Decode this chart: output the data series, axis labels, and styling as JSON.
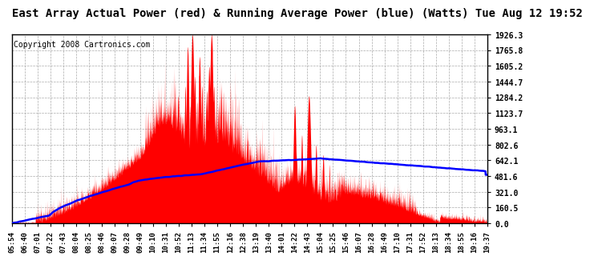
{
  "title": "East Array Actual Power (red) & Running Average Power (blue) (Watts) Tue Aug 12 19:52",
  "copyright": "Copyright 2008 Cartronics.com",
  "ylabel_values": [
    0.0,
    160.5,
    321.0,
    481.6,
    642.1,
    802.6,
    963.1,
    1123.7,
    1284.2,
    1444.7,
    1605.2,
    1765.8,
    1926.3
  ],
  "ymax": 1926.3,
  "ymin": 0.0,
  "xtick_labels": [
    "05:54",
    "06:40",
    "07:01",
    "07:22",
    "07:43",
    "08:04",
    "08:25",
    "08:46",
    "09:07",
    "09:28",
    "09:49",
    "10:10",
    "10:31",
    "10:52",
    "11:13",
    "11:34",
    "11:55",
    "12:16",
    "12:38",
    "13:19",
    "13:40",
    "14:01",
    "14:22",
    "14:43",
    "15:04",
    "15:25",
    "15:46",
    "16:07",
    "16:28",
    "16:49",
    "17:10",
    "17:31",
    "17:52",
    "18:13",
    "18:34",
    "18:55",
    "19:16",
    "19:37"
  ],
  "bg_color": "#ffffff",
  "plot_bg_color": "#ffffff",
  "grid_color": "#aaaaaa",
  "actual_color": "#ff0000",
  "avg_color": "#0000ff",
  "title_fontsize": 10,
  "copyright_fontsize": 7,
  "title_fontfamily": "monospace"
}
